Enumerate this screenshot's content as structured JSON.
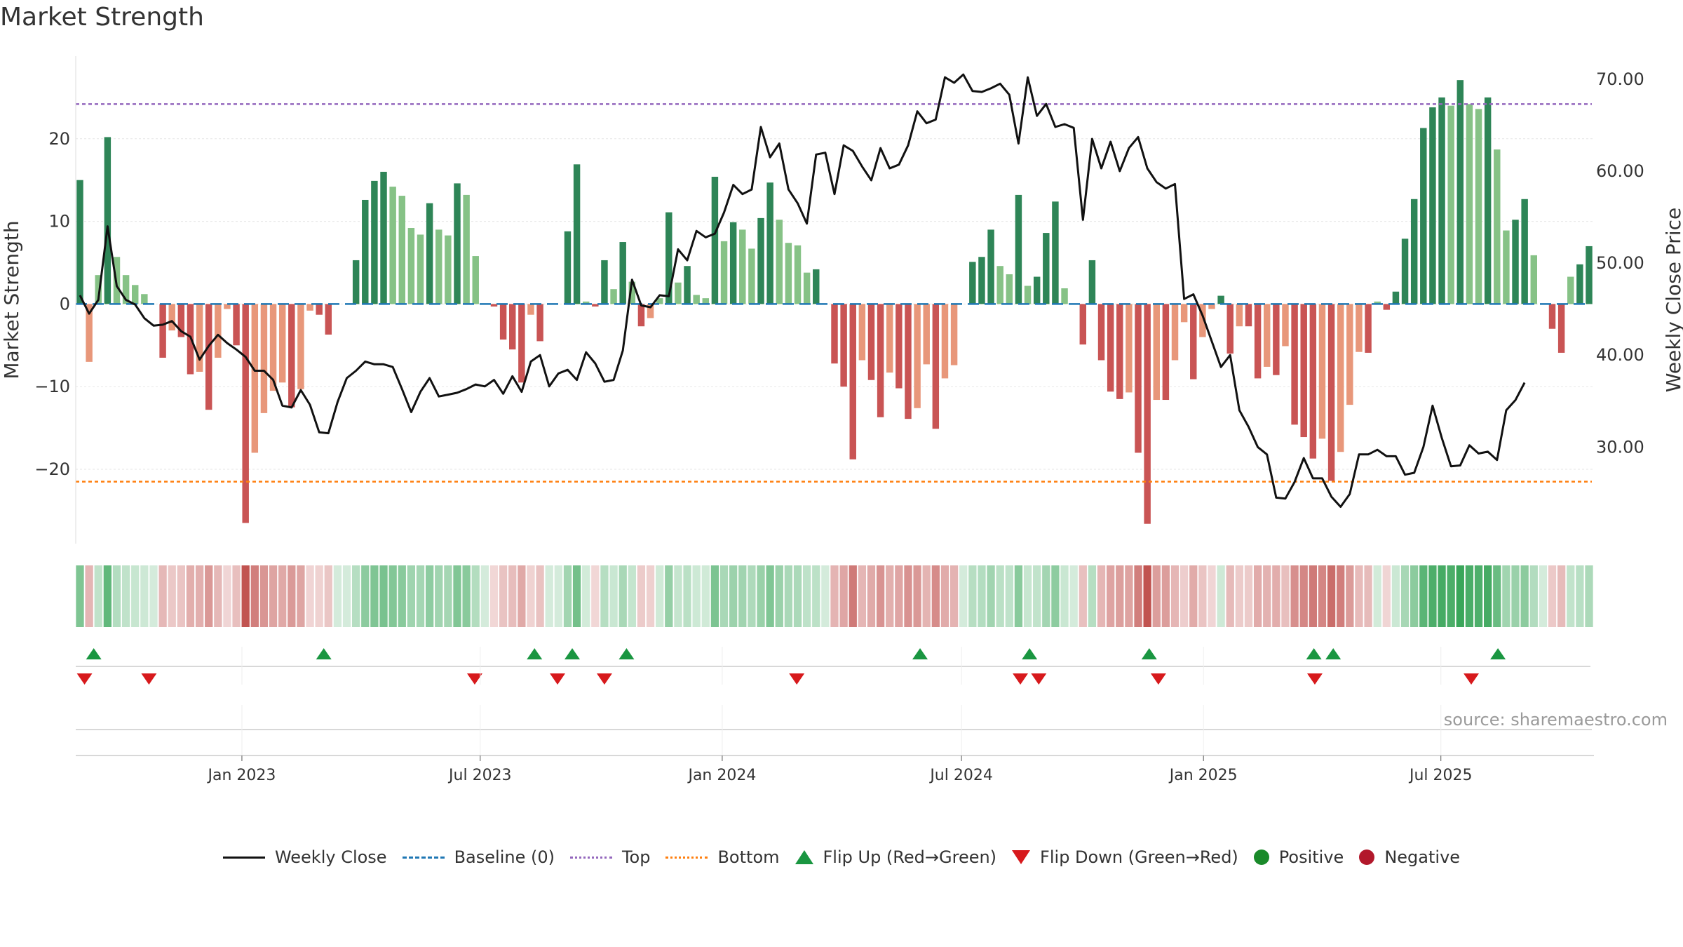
{
  "title": "Market Strength",
  "source_text": "source: sharemaestro.com",
  "colors": {
    "pos_strong": "#2e8557",
    "pos_light": "#86c286",
    "neg_strong": "#c95454",
    "neg_light": "#e8977a",
    "close_line": "#111111",
    "baseline": "#1f77b4",
    "top": "#9467bd",
    "bottom": "#ff7f0e",
    "flip_up": "#1a9641",
    "flip_down": "#d7191c",
    "positive": "#1a8a2a",
    "negative": "#b2182b"
  },
  "chart_data": {
    "type": "bar",
    "title": "Market Strength",
    "ylabel": "Market Strength",
    "y2label": "Weekly Close Price",
    "ylim": [
      -29,
      30
    ],
    "y2lim": [
      19.5,
      72.5
    ],
    "yticks": [
      "20",
      "10",
      "0",
      "−10",
      "−20"
    ],
    "ytick_values": [
      20,
      10,
      0,
      -10,
      -20
    ],
    "y2ticks": [
      "70.00",
      "60.00",
      "50.00",
      "40.00",
      "30.00"
    ],
    "y2tick_values": [
      70,
      60,
      50,
      40,
      30
    ],
    "top_line": 24.2,
    "bottom_line": -21.5,
    "baseline": 0,
    "x_start_week_index": 0,
    "xticks": [
      {
        "label": "Jan 2023",
        "week": 17.6
      },
      {
        "label": "Jul 2023",
        "week": 43.5
      },
      {
        "label": "Jan 2024",
        "week": 69.8
      },
      {
        "label": "Jul 2024",
        "week": 95.8
      },
      {
        "label": "Jan 2025",
        "week": 122.1
      },
      {
        "label": "Jul 2025",
        "week": 147.9
      }
    ],
    "strength": [
      15,
      -7,
      3.5,
      20.2,
      5.7,
      3.5,
      2.3,
      1.2,
      0,
      -6.5,
      -3.2,
      -4,
      -8.5,
      -8.2,
      -12.8,
      -6.5,
      -0.6,
      -5,
      -26.5,
      -18,
      -13.2,
      -10.5,
      -9.5,
      -12.5,
      -10.3,
      -0.8,
      -1.3,
      -3.7,
      0,
      0,
      5.3,
      12.6,
      14.9,
      16,
      14.2,
      13.1,
      9.2,
      8.4,
      12.2,
      9,
      8.3,
      14.6,
      13.2,
      5.8,
      0,
      -0.3,
      -4.3,
      -5.5,
      -9.5,
      -1.3,
      -4.5,
      0,
      0,
      8.8,
      16.9,
      0.3,
      -0.3,
      5.3,
      1.8,
      7.5,
      2.7,
      -2.7,
      -1.7,
      0.7,
      11.1,
      2.6,
      4.6,
      1.1,
      0.7,
      15.4,
      7.6,
      9.9,
      9,
      6.7,
      10.4,
      14.7,
      10.2,
      7.4,
      7.1,
      3.8,
      4.2,
      0,
      -7.2,
      -10,
      -18.8,
      -6.8,
      -9.2,
      -13.7,
      -8.3,
      -10.2,
      -13.9,
      -12.6,
      -7.3,
      -15.1,
      -9,
      -7.4,
      0,
      5.1,
      5.7,
      9,
      4.6,
      3.6,
      13.2,
      2.2,
      3.3,
      8.6,
      12.4,
      1.9,
      0,
      -4.9,
      5.3,
      -6.8,
      -10.6,
      -11.5,
      -10.7,
      -18,
      -26.6,
      -11.6,
      -11.6,
      -6.8,
      -2.2,
      -9.1,
      -4,
      -0.6,
      1,
      -6,
      -2.7,
      -2.7,
      -9,
      -7.6,
      -8.6,
      -5.1,
      -14.6,
      -16.1,
      -18.7,
      -16.3,
      -21.4,
      -17.9,
      -12.2,
      -5.8,
      -5.9,
      0.3,
      -0.7,
      1.5,
      7.9,
      12.7,
      21.3,
      23.8,
      25,
      24,
      27.1,
      24.2,
      23.6,
      25,
      18.7,
      8.9,
      10.2,
      12.7,
      5.9,
      0,
      -3,
      -5.9,
      3.3,
      4.8,
      7
    ],
    "close": [
      46.5,
      44.5,
      46.0,
      54.0,
      47.5,
      46.0,
      45.5,
      44.0,
      43.2,
      43.3,
      43.7,
      42.6,
      42.0,
      39.5,
      41.0,
      42.2,
      41.3,
      40.6,
      39.8,
      38.3,
      38.3,
      37.3,
      34.5,
      34.3,
      36.2,
      34.6,
      31.6,
      31.5,
      34.9,
      37.5,
      38.3,
      39.3,
      39.0,
      39.0,
      38.7,
      36.3,
      33.8,
      36.0,
      37.5,
      35.5,
      35.7,
      35.9,
      36.3,
      36.8,
      36.6,
      37.3,
      35.8,
      37.7,
      36.0,
      39.3,
      40.0,
      36.6,
      38.0,
      38.4,
      37.3,
      40.3,
      39.1,
      37.1,
      37.3,
      40.5,
      48.2,
      45.4,
      45.2,
      46.5,
      46.4,
      51.5,
      50.3,
      53.5,
      52.8,
      53.2,
      55.5,
      58.5,
      57.5,
      58.0,
      64.8,
      61.5,
      63.0,
      58.0,
      56.5,
      54.3,
      61.8,
      62.0,
      57.5,
      62.8,
      62.2,
      60.5,
      59.0,
      62.5,
      60.3,
      60.7,
      62.8,
      66.5,
      65.2,
      65.6,
      70.2,
      69.6,
      70.5,
      68.7,
      68.6,
      69.0,
      69.5,
      68.3,
      63.0,
      70.2,
      66.0,
      67.3,
      64.8,
      65.1,
      64.7,
      54.7,
      63.5,
      60.3,
      63.2,
      60.0,
      62.5,
      63.7,
      60.3,
      58.8,
      58.1,
      58.6,
      46.1,
      46.6,
      44.3,
      41.5,
      38.7,
      40.0,
      34.0,
      32.2,
      30.0,
      29.2,
      24.5,
      24.4,
      26.2,
      28.8,
      26.6,
      26.6,
      24.6,
      23.5,
      24.9,
      29.2,
      29.2,
      29.7,
      29.0,
      29.0,
      27.0,
      27.2,
      30.0,
      34.5,
      31.0,
      27.9,
      28.0,
      30.2,
      29.3,
      29.5,
      28.6,
      34.0,
      35.1,
      37.0
    ]
  },
  "ribbon": {
    "label": "strength ribbon",
    "series_source": "chart_data.strength"
  },
  "flips": {
    "up_weeks": [
      1.5,
      26.5,
      49.4,
      53.5,
      59.4,
      91.3,
      103.2,
      116.2,
      134.1,
      136.2,
      154.1
    ],
    "down_weeks": [
      0.5,
      7.5,
      42.9,
      51.9,
      57.0,
      77.9,
      102.2,
      104.2,
      117.2,
      134.2,
      151.2
    ]
  },
  "legend": [
    {
      "key": "close",
      "label": "Weekly Close"
    },
    {
      "key": "baseline",
      "label": "Baseline (0)"
    },
    {
      "key": "top",
      "label": "Top"
    },
    {
      "key": "bottom",
      "label": "Bottom"
    },
    {
      "key": "flip_up",
      "label": "Flip Up (Red→Green)"
    },
    {
      "key": "flip_down",
      "label": "Flip Down (Green→Red)"
    },
    {
      "key": "positive",
      "label": "Positive"
    },
    {
      "key": "negative",
      "label": "Negative"
    }
  ]
}
